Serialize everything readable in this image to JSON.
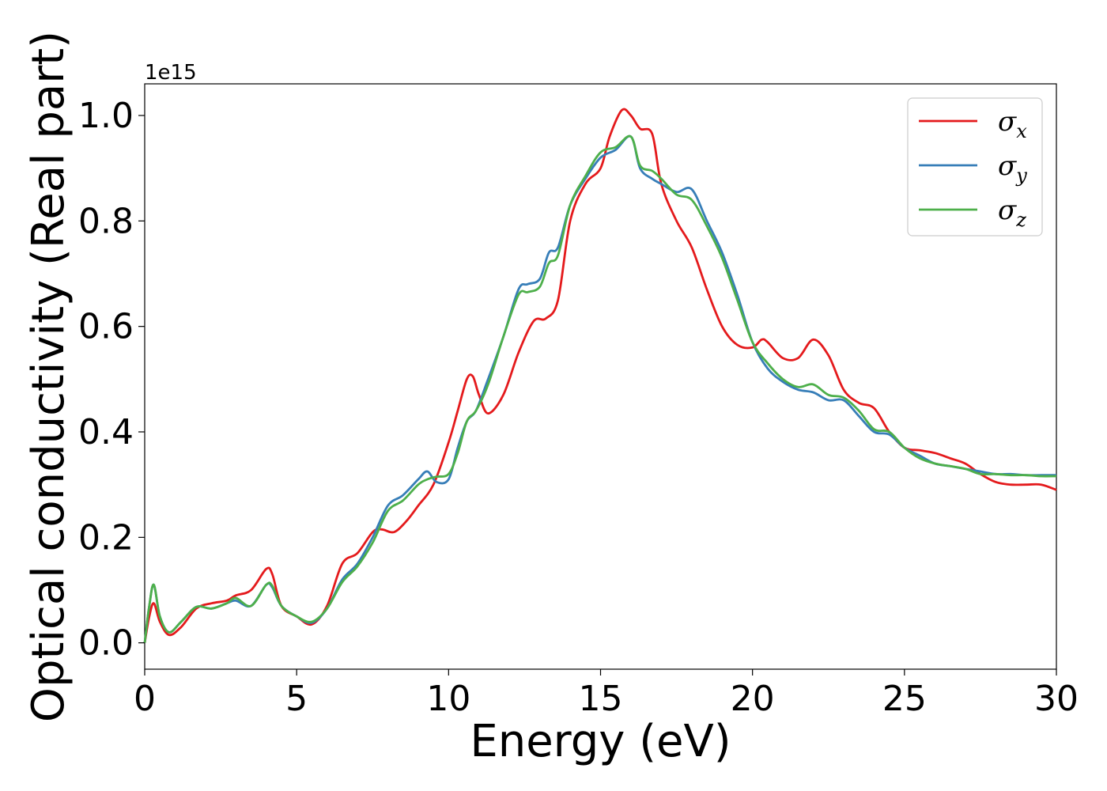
{
  "chart_data": {
    "type": "line",
    "xlabel": "Energy (eV)",
    "ylabel": "Optical conductivity (Real part)",
    "offset_text": "1e15",
    "xlim": [
      0,
      30
    ],
    "ylim": [
      -0.05,
      1.06
    ],
    "xticks": [
      0,
      5,
      10,
      15,
      20,
      25,
      30
    ],
    "xtick_labels": [
      "0",
      "5",
      "10",
      "15",
      "20",
      "25",
      "30"
    ],
    "yticks": [
      0.0,
      0.2,
      0.4,
      0.6,
      0.8,
      1.0
    ],
    "ytick_labels": [
      "0.0",
      "0.2",
      "0.4",
      "0.6",
      "0.8",
      "1.0"
    ],
    "grid": false,
    "legend": {
      "position": "top-right"
    },
    "series": [
      {
        "name": "σx",
        "color": "#e41a1c",
        "x": [
          0,
          0.15,
          0.3,
          0.5,
          0.8,
          1.2,
          1.7,
          2.2,
          2.7,
          3.0,
          3.5,
          4.0,
          4.2,
          4.5,
          5.0,
          5.5,
          6.0,
          6.5,
          7.0,
          7.5,
          7.8,
          8.2,
          8.6,
          9.0,
          9.5,
          10.0,
          10.3,
          10.6,
          10.8,
          11.0,
          11.3,
          11.8,
          12.3,
          12.8,
          13.2,
          13.6,
          14.0,
          14.5,
          15.0,
          15.3,
          15.7,
          16.0,
          16.3,
          16.7,
          17.0,
          17.5,
          18.0,
          18.5,
          19.0,
          19.5,
          20.0,
          20.3,
          20.5,
          21.0,
          21.5,
          22.0,
          22.5,
          23.0,
          23.5,
          24.0,
          24.5,
          25.0,
          25.5,
          26.0,
          26.5,
          27.0,
          27.5,
          28.0,
          28.5,
          29.0,
          29.5,
          30.0
        ],
        "y": [
          0.0,
          0.05,
          0.075,
          0.04,
          0.015,
          0.03,
          0.065,
          0.075,
          0.08,
          0.09,
          0.1,
          0.14,
          0.13,
          0.07,
          0.05,
          0.035,
          0.07,
          0.15,
          0.17,
          0.21,
          0.215,
          0.21,
          0.23,
          0.26,
          0.3,
          0.38,
          0.44,
          0.5,
          0.505,
          0.47,
          0.435,
          0.47,
          0.55,
          0.61,
          0.615,
          0.65,
          0.8,
          0.87,
          0.9,
          0.96,
          1.01,
          1.0,
          0.975,
          0.965,
          0.87,
          0.8,
          0.75,
          0.67,
          0.6,
          0.565,
          0.56,
          0.575,
          0.57,
          0.54,
          0.54,
          0.575,
          0.545,
          0.48,
          0.455,
          0.445,
          0.4,
          0.37,
          0.365,
          0.36,
          0.35,
          0.34,
          0.32,
          0.305,
          0.3,
          0.3,
          0.3,
          0.29
        ]
      },
      {
        "name": "σy",
        "color": "#377eb8",
        "x": [
          0,
          0.15,
          0.3,
          0.5,
          0.8,
          1.2,
          1.7,
          2.2,
          2.7,
          3.0,
          3.5,
          4.0,
          4.2,
          4.5,
          5.0,
          5.5,
          6.0,
          6.5,
          7.0,
          7.5,
          8.0,
          8.5,
          9.0,
          9.3,
          9.6,
          10.0,
          10.3,
          10.6,
          10.9,
          11.3,
          11.8,
          12.3,
          12.6,
          13.0,
          13.3,
          13.6,
          14.0,
          14.5,
          15.0,
          15.5,
          16.0,
          16.3,
          16.7,
          17.0,
          17.5,
          18.0,
          18.5,
          19.0,
          19.5,
          20.0,
          20.5,
          21.0,
          21.5,
          22.0,
          22.5,
          23.0,
          23.5,
          24.0,
          24.5,
          25.0,
          25.5,
          26.0,
          26.5,
          27.0,
          27.5,
          28.0,
          28.5,
          29.0,
          29.5,
          30.0
        ],
        "y": [
          0.0,
          0.07,
          0.11,
          0.05,
          0.02,
          0.04,
          0.068,
          0.065,
          0.075,
          0.08,
          0.07,
          0.11,
          0.105,
          0.07,
          0.05,
          0.038,
          0.065,
          0.12,
          0.15,
          0.2,
          0.26,
          0.28,
          0.31,
          0.325,
          0.305,
          0.31,
          0.37,
          0.42,
          0.44,
          0.5,
          0.58,
          0.67,
          0.68,
          0.69,
          0.74,
          0.75,
          0.83,
          0.88,
          0.92,
          0.935,
          0.96,
          0.9,
          0.88,
          0.87,
          0.855,
          0.86,
          0.8,
          0.74,
          0.66,
          0.57,
          0.52,
          0.495,
          0.48,
          0.475,
          0.46,
          0.46,
          0.43,
          0.4,
          0.395,
          0.37,
          0.355,
          0.34,
          0.335,
          0.33,
          0.325,
          0.32,
          0.32,
          0.318,
          0.318,
          0.318
        ]
      },
      {
        "name": "σz",
        "color": "#4daf4a",
        "x": [
          0,
          0.15,
          0.3,
          0.5,
          0.8,
          1.2,
          1.7,
          2.2,
          2.7,
          3.0,
          3.5,
          4.0,
          4.2,
          4.5,
          5.0,
          5.5,
          6.0,
          6.5,
          7.0,
          7.5,
          8.0,
          8.5,
          9.0,
          9.3,
          9.6,
          10.0,
          10.3,
          10.6,
          10.9,
          11.3,
          11.8,
          12.3,
          12.6,
          13.0,
          13.3,
          13.6,
          14.0,
          14.5,
          15.0,
          15.5,
          16.0,
          16.3,
          16.7,
          17.0,
          17.5,
          18.0,
          18.5,
          19.0,
          19.5,
          20.0,
          20.5,
          21.0,
          21.5,
          22.0,
          22.5,
          23.0,
          23.5,
          24.0,
          24.5,
          25.0,
          25.5,
          26.0,
          26.5,
          27.0,
          27.5,
          28.0,
          28.5,
          29.0,
          29.5,
          30.0
        ],
        "y": [
          0.0,
          0.07,
          0.11,
          0.05,
          0.02,
          0.04,
          0.068,
          0.065,
          0.075,
          0.085,
          0.07,
          0.11,
          0.108,
          0.07,
          0.05,
          0.04,
          0.065,
          0.115,
          0.145,
          0.19,
          0.25,
          0.27,
          0.3,
          0.31,
          0.315,
          0.32,
          0.36,
          0.42,
          0.44,
          0.49,
          0.58,
          0.66,
          0.665,
          0.675,
          0.72,
          0.735,
          0.83,
          0.885,
          0.93,
          0.94,
          0.96,
          0.905,
          0.895,
          0.88,
          0.85,
          0.84,
          0.79,
          0.73,
          0.65,
          0.57,
          0.53,
          0.5,
          0.485,
          0.49,
          0.47,
          0.465,
          0.44,
          0.405,
          0.4,
          0.37,
          0.35,
          0.34,
          0.335,
          0.33,
          0.32,
          0.32,
          0.318,
          0.318,
          0.316,
          0.316
        ]
      }
    ]
  }
}
